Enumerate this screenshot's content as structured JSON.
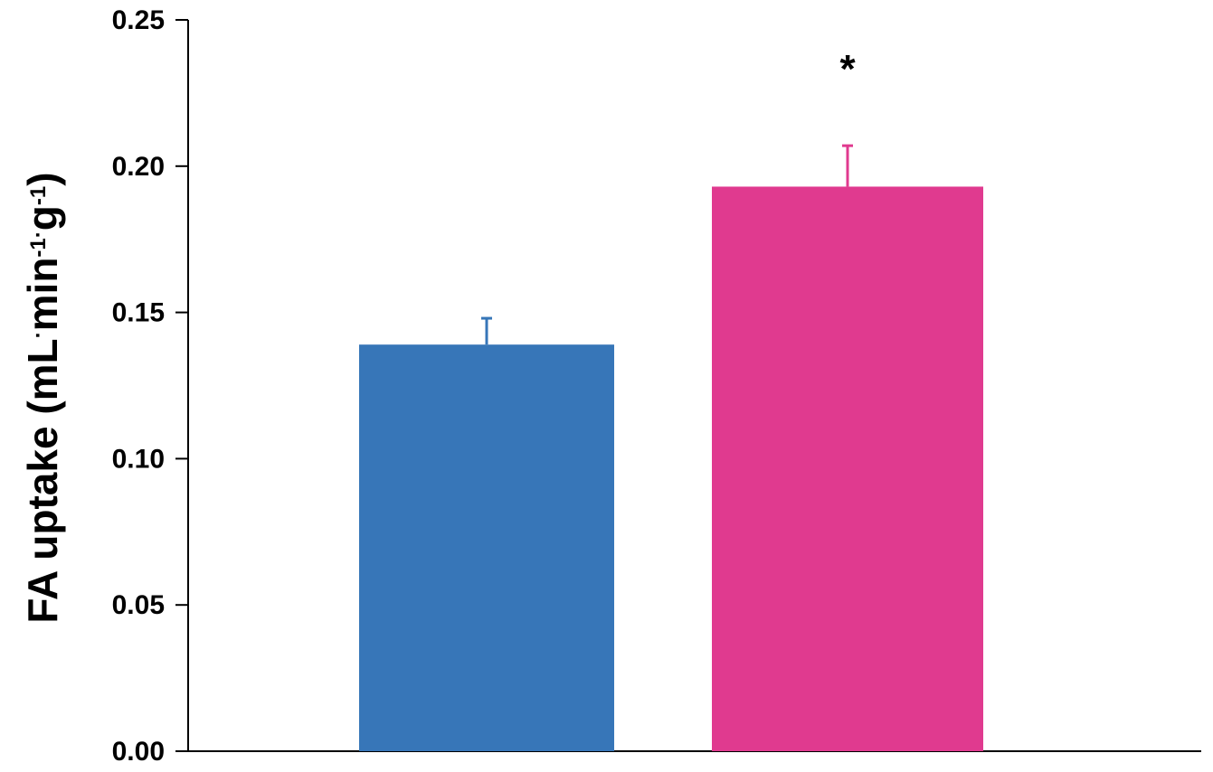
{
  "chart_data": {
    "type": "bar",
    "title": "",
    "ylabel": {
      "parts": [
        {
          "text": "FA uptake (mL",
          "sup": false
        },
        {
          "text": "·",
          "sup": true
        },
        {
          "text": "min",
          "sup": false
        },
        {
          "text": "-1",
          "sup": true
        },
        {
          "text": "·",
          "sup": true
        },
        {
          "text": "g",
          "sup": false
        },
        {
          "text": "-1",
          "sup": true
        },
        {
          "text": ")",
          "sup": false
        }
      ]
    },
    "xlabel": "",
    "ylim": [
      0,
      0.25
    ],
    "yticks": [
      "0.00",
      "0.05",
      "0.10",
      "0.15",
      "0.20",
      "0.25"
    ],
    "bars": [
      {
        "value": 0.139,
        "error": 0.009,
        "color": "#3776b8",
        "annotation": ""
      },
      {
        "value": 0.193,
        "error": 0.014,
        "color": "#e03a8f",
        "annotation": "*"
      }
    ],
    "grid": false,
    "legend": "none"
  }
}
